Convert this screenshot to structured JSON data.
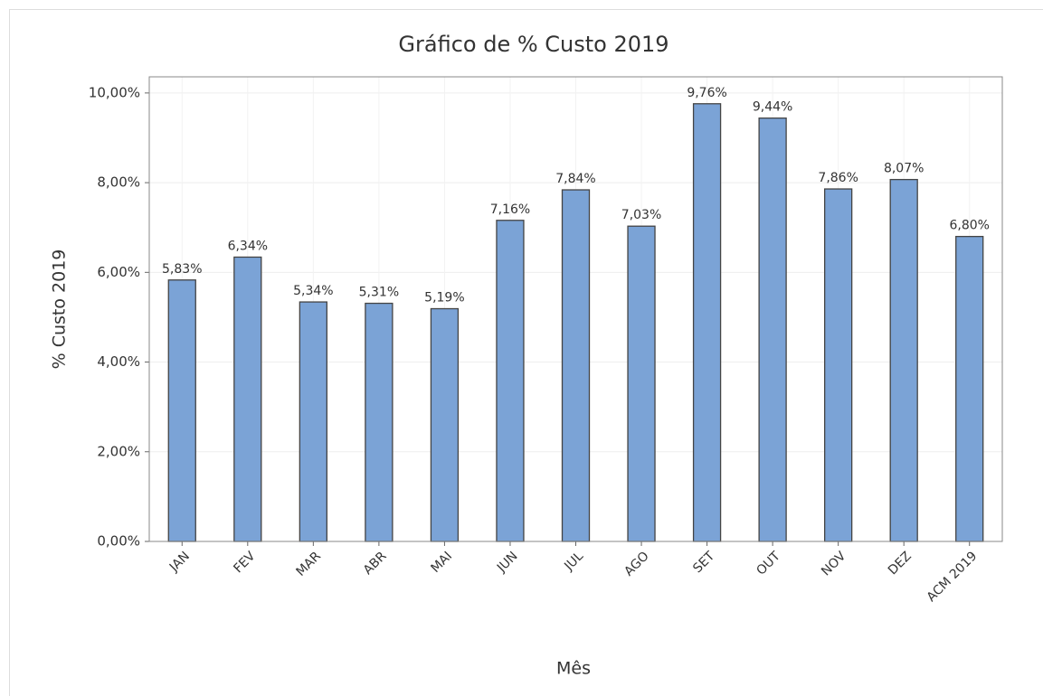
{
  "chart_data": {
    "type": "bar",
    "title": "Gráfico de % Custo 2019",
    "x_label": "Mês",
    "y_label": "% Custo 2019",
    "categories": [
      "JAN",
      "FEV",
      "MAR",
      "ABR",
      "MAI",
      "JUN",
      "JUL",
      "AGO",
      "SET",
      "OUT",
      "NOV",
      "DEZ",
      "ACM 2019"
    ],
    "values": [
      5.83,
      6.34,
      5.34,
      5.31,
      5.19,
      7.16,
      7.84,
      7.03,
      9.76,
      9.44,
      7.86,
      8.07,
      6.8
    ],
    "value_labels": [
      "5,83%",
      "6,34%",
      "5,34%",
      "5,31%",
      "5,19%",
      "7,16%",
      "7,84%",
      "7,03%",
      "9,76%",
      "9,44%",
      "7,86%",
      "8,07%",
      "6,80%"
    ],
    "color": "#7ba3d6",
    "ylim": [
      0,
      10.36
    ],
    "yticks": [
      {
        "value": 0,
        "label": "0,00%"
      },
      {
        "value": 2,
        "label": "2,00%"
      },
      {
        "value": 4,
        "label": "4,00%"
      },
      {
        "value": 6,
        "label": "6,00%"
      },
      {
        "value": 8,
        "label": "8,00%"
      },
      {
        "value": 10,
        "label": "10,00%"
      }
    ],
    "grid": true
  }
}
